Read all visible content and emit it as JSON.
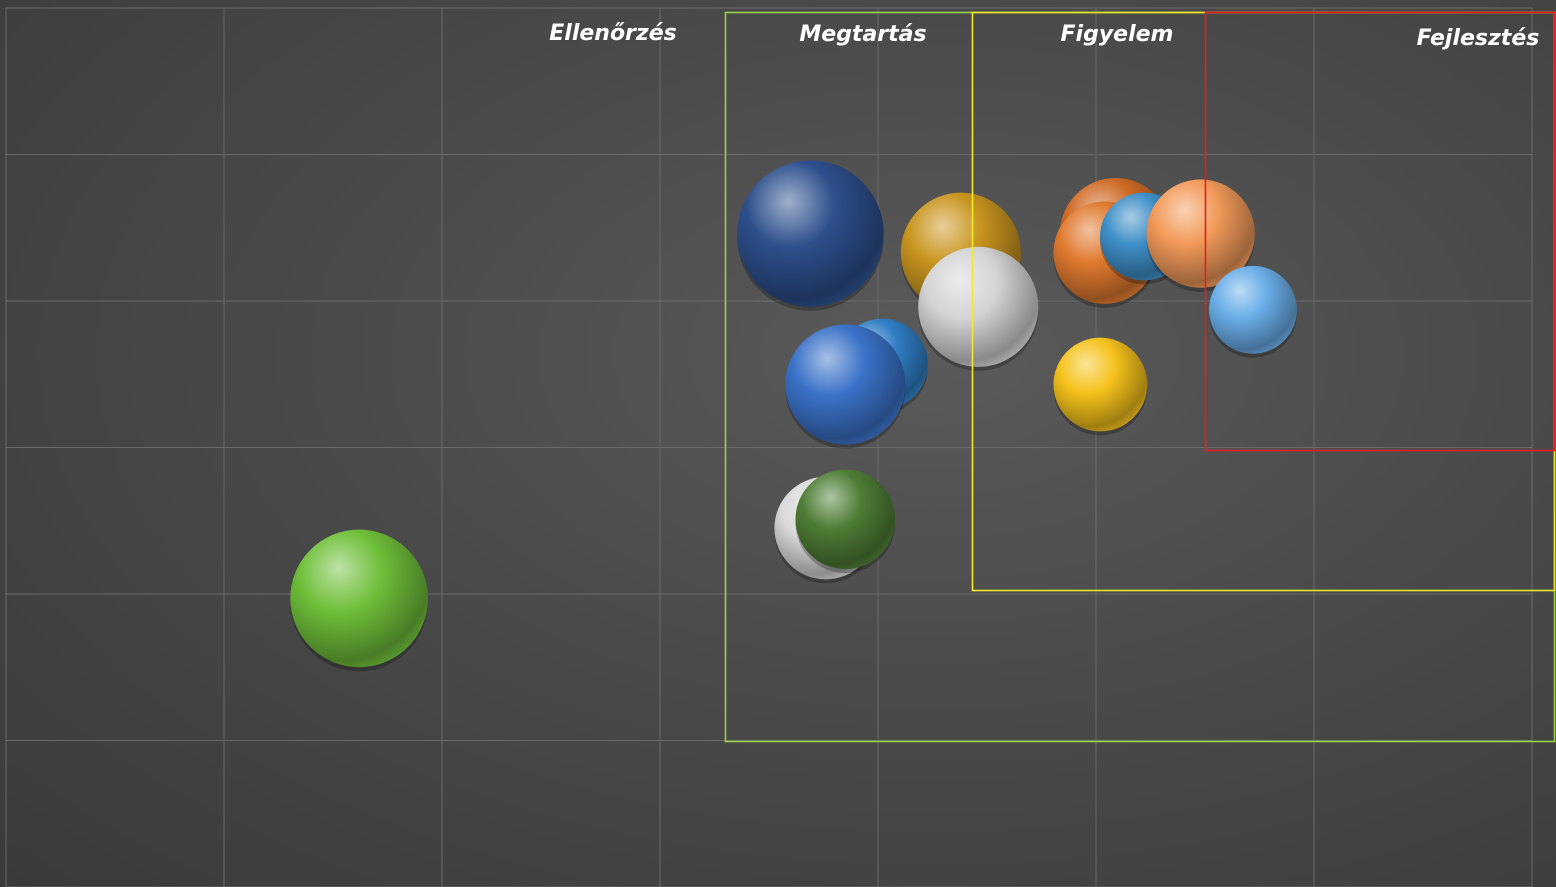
{
  "chart_data": {
    "type": "bubble",
    "xlim": [
      0,
      7
    ],
    "ylim": [
      0,
      6
    ],
    "grid": true,
    "zones": [
      {
        "label": "Ellenőrzés",
        "color": ""
      },
      {
        "label": "Megtartás",
        "color": "#9bd147"
      },
      {
        "label": "Figyelem",
        "color": "#f2ea2a"
      },
      {
        "label": "Fejlesztés",
        "color": "#e02020"
      }
    ],
    "series": [
      {
        "x": 1.62,
        "y": 1.97,
        "size": 0.47,
        "color": "#6fbf3a"
      },
      {
        "x": 3.69,
        "y": 4.46,
        "size": 0.5,
        "color": "#2d4f8c"
      },
      {
        "x": 4.38,
        "y": 4.33,
        "size": 0.41,
        "color": "#c9951f"
      },
      {
        "x": 5.09,
        "y": 4.46,
        "size": 0.38,
        "color": "#cf6a24"
      },
      {
        "x": 5.04,
        "y": 4.33,
        "size": 0.35,
        "color": "#e07a30"
      },
      {
        "x": 5.22,
        "y": 4.44,
        "size": 0.3,
        "color": "#3f8fc8"
      },
      {
        "x": 5.48,
        "y": 4.46,
        "size": 0.37,
        "color": "#f29a5a"
      },
      {
        "x": 5.72,
        "y": 3.94,
        "size": 0.3,
        "color": "#6aaee8"
      },
      {
        "x": 4.02,
        "y": 3.57,
        "size": 0.31,
        "color": "#2f7ec4"
      },
      {
        "x": 3.85,
        "y": 3.43,
        "size": 0.41,
        "color": "#3b72c8"
      },
      {
        "x": 4.46,
        "y": 3.96,
        "size": 0.41,
        "color": "#d4d4d4"
      },
      {
        "x": 5.02,
        "y": 3.43,
        "size": 0.32,
        "color": "#f5c21c"
      },
      {
        "x": 3.76,
        "y": 2.45,
        "size": 0.35,
        "color": "#d9d9d9"
      },
      {
        "x": 3.85,
        "y": 2.51,
        "size": 0.34,
        "color": "#4e7d35"
      }
    ]
  }
}
